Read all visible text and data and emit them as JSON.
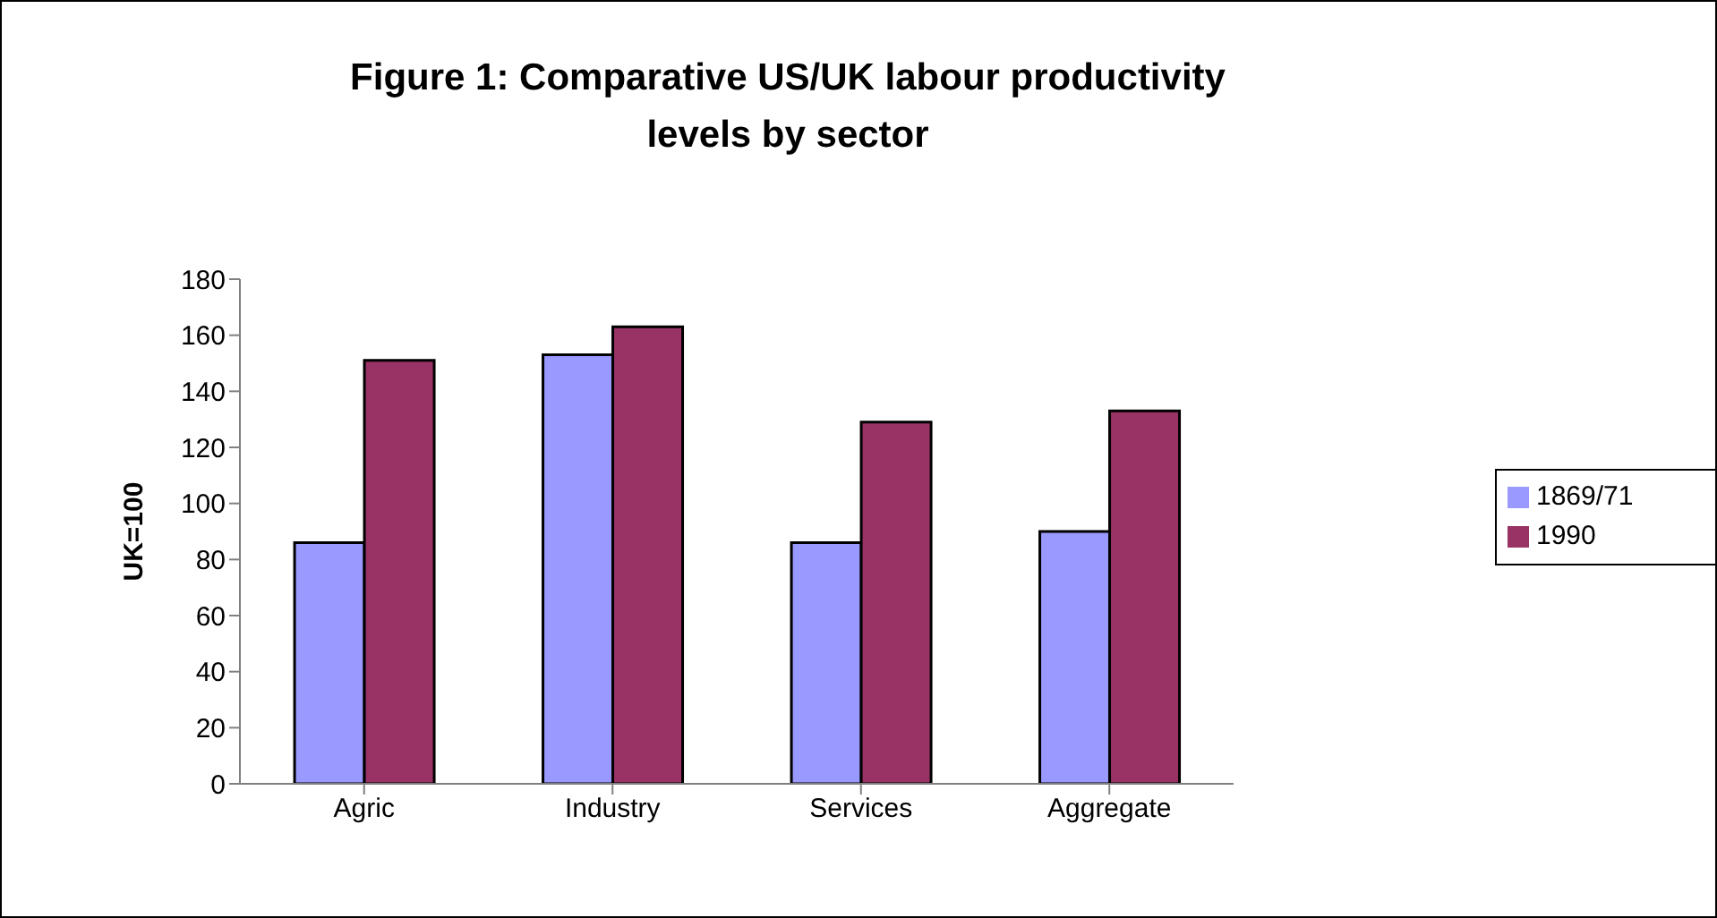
{
  "chart_data": {
    "type": "bar",
    "title": "Figure 1: Comparative US/UK labour productivity levels by sector",
    "ylabel": "UK=100",
    "categories": [
      "Agric",
      "Industry",
      "Services",
      "Aggregate"
    ],
    "series": [
      {
        "name": "1869/71",
        "color": "#9999ff",
        "values": [
          86,
          153,
          86,
          90
        ]
      },
      {
        "name": "1990",
        "color": "#993366",
        "values": [
          151,
          163,
          129,
          133
        ]
      }
    ],
    "ylim": [
      0,
      180
    ],
    "yticks": [
      0,
      20,
      40,
      60,
      80,
      100,
      120,
      140,
      160,
      180
    ],
    "grid": false,
    "legend": "right"
  }
}
